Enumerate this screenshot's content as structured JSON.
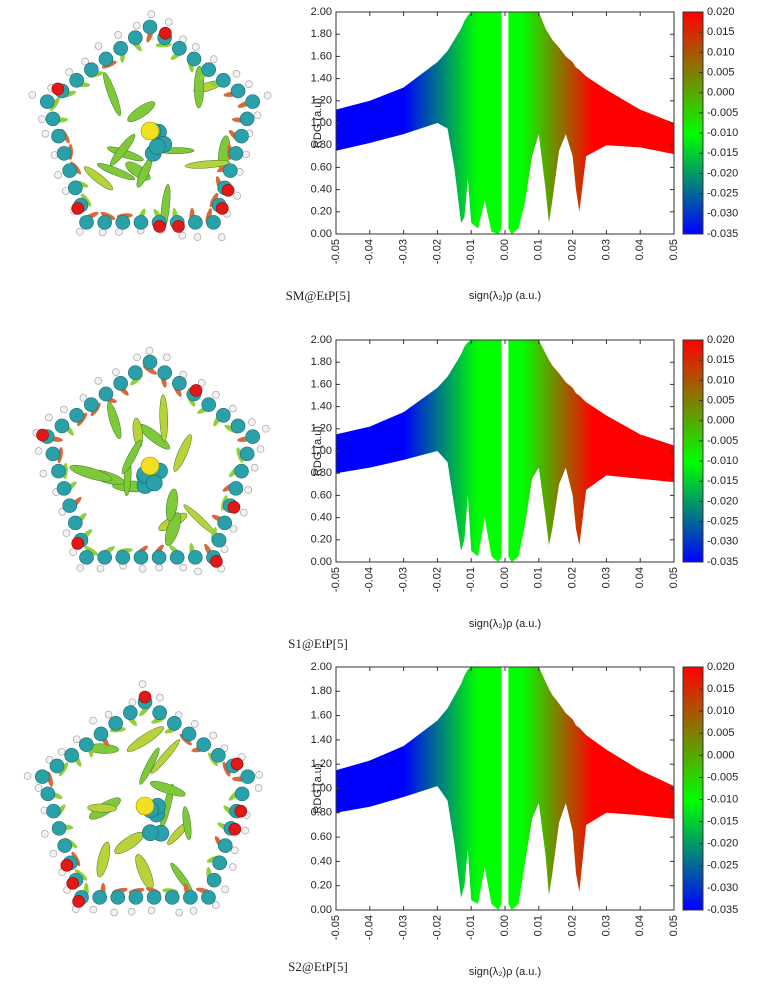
{
  "chart_data": [
    {
      "type": "area",
      "caption": "SM@EtP[5]",
      "x_label": "sign(λ₂)ρ (a.u.)",
      "y_label": "RDG (a.u)",
      "xlim": [
        -0.05,
        0.05
      ],
      "ylim": [
        0,
        2
      ],
      "xticks": [
        -0.05,
        -0.04,
        -0.03,
        -0.02,
        -0.01,
        {
          "value": 0,
          "label": "0.00"
        },
        0.01,
        0.02,
        0.03,
        0.04,
        0.05
      ],
      "yticks": [
        {
          "value": 0,
          "label": "0.00"
        },
        {
          "value": 0.2,
          "label": "0.20"
        },
        {
          "value": 0.4,
          "label": "0.40"
        },
        {
          "value": 0.6,
          "label": "0.60"
        },
        {
          "value": 0.8,
          "label": "0.80"
        },
        {
          "value": 1,
          "label": "1.00"
        },
        {
          "value": 1.2,
          "label": "1.20"
        },
        {
          "value": 1.4,
          "label": "1.40"
        },
        {
          "value": 1.6,
          "label": "1.60"
        },
        {
          "value": 1.8,
          "label": "1.80"
        },
        {
          "value": 2,
          "label": "2.00"
        }
      ],
      "x": [
        -0.05,
        -0.04,
        -0.03,
        -0.02,
        -0.017,
        -0.015,
        -0.013,
        -0.012,
        -0.011,
        -0.01,
        -0.008,
        -0.006,
        -0.004,
        -0.002,
        -0.001,
        0,
        0.001,
        0.002,
        0.004,
        0.006,
        0.008,
        0.01,
        0.012,
        0.013,
        0.014,
        0.016,
        0.018,
        0.02,
        0.021,
        0.022,
        0.024,
        0.03,
        0.04,
        0.05
      ],
      "values": [
        1.12,
        1.2,
        1.32,
        1.55,
        1.65,
        1.75,
        1.85,
        1.92,
        1.97,
        2,
        2,
        2,
        2,
        2,
        2,
        null,
        2,
        2,
        2,
        2,
        2,
        2,
        1.85,
        1.8,
        1.75,
        1.68,
        1.6,
        1.55,
        1.5,
        1.48,
        1.42,
        1.3,
        1.12,
        1.0
      ],
      "lower_values": [
        0.75,
        0.82,
        0.9,
        1.0,
        0.95,
        0.6,
        0.1,
        0.15,
        0.5,
        0.1,
        0.05,
        0.3,
        0.02,
        0,
        0.05,
        null,
        0.05,
        0,
        0.05,
        0.3,
        0.7,
        0.9,
        0.4,
        0.1,
        0.3,
        0.75,
        0.9,
        0.7,
        0.4,
        0.2,
        0.7,
        0.8,
        0.78,
        0.72
      ],
      "colorbar": {
        "ylim": [
          -0.035,
          0.02
        ],
        "colors": [
          "#0000ff",
          "#00ff00",
          "#ff0000"
        ],
        "yticks": [
          {
            "value": 0.02,
            "label": "0.020"
          },
          {
            "value": 0.015,
            "label": "0.015"
          },
          {
            "value": 0.01,
            "label": "0.010"
          },
          {
            "value": 0.005,
            "label": "0.005"
          },
          {
            "value": 0,
            "label": "0.000"
          },
          {
            "value": -0.005,
            "label": "-0.005"
          },
          {
            "value": -0.01,
            "label": "-0.010"
          },
          {
            "value": -0.015,
            "label": "-0.015"
          },
          {
            "value": -0.02,
            "label": "-0.020"
          },
          {
            "value": -0.025,
            "label": "-0.025"
          },
          {
            "value": -0.03,
            "label": "-0.030"
          },
          {
            "value": -0.035,
            "label": "-0.035"
          }
        ]
      }
    },
    {
      "type": "area",
      "caption": "S1@EtP[5]",
      "x_label": "sign(λ₂)ρ (a.u.)",
      "y_label": "RDG (a.u)",
      "xlim": [
        -0.05,
        0.05
      ],
      "ylim": [
        0,
        2
      ],
      "xticks": [
        -0.05,
        -0.04,
        -0.03,
        -0.02,
        -0.01,
        {
          "value": 0,
          "label": "0.00"
        },
        0.01,
        0.02,
        0.03,
        0.04,
        0.05
      ],
      "yticks": [
        {
          "value": 0,
          "label": "0.00"
        },
        {
          "value": 0.2,
          "label": "0.20"
        },
        {
          "value": 0.4,
          "label": "0.40"
        },
        {
          "value": 0.6,
          "label": "0.60"
        },
        {
          "value": 0.8,
          "label": "0.80"
        },
        {
          "value": 1,
          "label": "1.00"
        },
        {
          "value": 1.2,
          "label": "1.20"
        },
        {
          "value": 1.4,
          "label": "1.40"
        },
        {
          "value": 1.6,
          "label": "1.60"
        },
        {
          "value": 1.8,
          "label": "1.80"
        },
        {
          "value": 2,
          "label": "2.00"
        }
      ],
      "x": [
        -0.05,
        -0.04,
        -0.03,
        -0.02,
        -0.017,
        -0.015,
        -0.013,
        -0.012,
        -0.011,
        -0.01,
        -0.008,
        -0.006,
        -0.004,
        -0.002,
        -0.001,
        0,
        0.001,
        0.002,
        0.004,
        0.006,
        0.008,
        0.01,
        0.012,
        0.013,
        0.014,
        0.016,
        0.018,
        0.02,
        0.021,
        0.022,
        0.024,
        0.03,
        0.04,
        0.05
      ],
      "values": [
        1.15,
        1.22,
        1.35,
        1.57,
        1.67,
        1.77,
        1.87,
        1.94,
        1.98,
        2,
        2,
        2,
        2,
        2,
        2,
        null,
        2,
        2,
        2,
        2,
        2,
        2,
        1.88,
        1.82,
        1.77,
        1.7,
        1.62,
        1.57,
        1.52,
        1.5,
        1.44,
        1.32,
        1.15,
        1.05
      ],
      "lower_values": [
        0.8,
        0.85,
        0.92,
        1.0,
        0.9,
        0.5,
        0.1,
        0.2,
        0.6,
        0.1,
        0.05,
        0.4,
        0.05,
        0,
        0.05,
        null,
        0.05,
        0,
        0.05,
        0.35,
        0.75,
        0.85,
        0.4,
        0.15,
        0.3,
        0.7,
        0.85,
        0.6,
        0.3,
        0.15,
        0.65,
        0.78,
        0.75,
        0.72
      ],
      "colorbar": {
        "ylim": [
          -0.035,
          0.02
        ],
        "colors": [
          "#0000ff",
          "#00ff00",
          "#ff0000"
        ],
        "yticks": [
          {
            "value": 0.02,
            "label": "0.020"
          },
          {
            "value": 0.015,
            "label": "0.015"
          },
          {
            "value": 0.01,
            "label": "0.010"
          },
          {
            "value": 0.005,
            "label": "0.005"
          },
          {
            "value": 0,
            "label": "0.000"
          },
          {
            "value": -0.005,
            "label": "-0.005"
          },
          {
            "value": -0.01,
            "label": "-0.010"
          },
          {
            "value": -0.015,
            "label": "-0.015"
          },
          {
            "value": -0.02,
            "label": "-0.020"
          },
          {
            "value": -0.025,
            "label": "-0.025"
          },
          {
            "value": -0.03,
            "label": "-0.030"
          },
          {
            "value": -0.035,
            "label": "-0.035"
          }
        ]
      }
    },
    {
      "type": "area",
      "caption": "S2@EtP[5]",
      "x_label": "sign(λ₂)ρ (a.u.)",
      "y_label": "RDG (a.u)",
      "xlim": [
        -0.05,
        0.05
      ],
      "ylim": [
        0,
        2
      ],
      "xticks": [
        -0.05,
        -0.04,
        -0.03,
        -0.02,
        -0.01,
        {
          "value": 0,
          "label": "0.00"
        },
        0.01,
        0.02,
        0.03,
        0.04,
        0.05
      ],
      "yticks": [
        {
          "value": 0,
          "label": "0.00"
        },
        {
          "value": 0.2,
          "label": "0.20"
        },
        {
          "value": 0.4,
          "label": "0.40"
        },
        {
          "value": 0.6,
          "label": "0.60"
        },
        {
          "value": 0.8,
          "label": "0.80"
        },
        {
          "value": 1,
          "label": "1.00"
        },
        {
          "value": 1.2,
          "label": "1.20"
        },
        {
          "value": 1.4,
          "label": "1.40"
        },
        {
          "value": 1.6,
          "label": "1.60"
        },
        {
          "value": 1.8,
          "label": "1.80"
        },
        {
          "value": 2,
          "label": "2.00"
        }
      ],
      "x": [
        -0.05,
        -0.04,
        -0.03,
        -0.02,
        -0.017,
        -0.015,
        -0.013,
        -0.012,
        -0.011,
        -0.01,
        -0.008,
        -0.006,
        -0.004,
        -0.002,
        -0.001,
        0,
        0.001,
        0.002,
        0.004,
        0.006,
        0.008,
        0.01,
        0.012,
        0.013,
        0.014,
        0.016,
        0.018,
        0.02,
        0.021,
        0.022,
        0.024,
        0.03,
        0.04,
        0.05
      ],
      "values": [
        1.15,
        1.23,
        1.35,
        1.56,
        1.66,
        1.76,
        1.86,
        1.93,
        1.98,
        2,
        2,
        2,
        2,
        2,
        2,
        null,
        2,
        2,
        2,
        2,
        2,
        2,
        1.88,
        1.82,
        1.77,
        1.7,
        1.62,
        1.57,
        1.52,
        1.5,
        1.44,
        1.32,
        1.15,
        1.02
      ],
      "lower_values": [
        0.8,
        0.85,
        0.93,
        1.02,
        0.9,
        0.55,
        0.1,
        0.2,
        0.5,
        0.08,
        0.05,
        0.35,
        0.05,
        0,
        0.05,
        null,
        0.05,
        0,
        0.05,
        0.4,
        0.75,
        0.88,
        0.45,
        0.12,
        0.3,
        0.72,
        0.88,
        0.65,
        0.3,
        0.15,
        0.7,
        0.8,
        0.78,
        0.75
      ],
      "colorbar": {
        "ylim": [
          -0.035,
          0.02
        ],
        "colors": [
          "#0000ff",
          "#00ff00",
          "#ff0000"
        ],
        "yticks": [
          {
            "value": 0.02,
            "label": "0.020"
          },
          {
            "value": 0.015,
            "label": "0.015"
          },
          {
            "value": 0.01,
            "label": "0.010"
          },
          {
            "value": 0.005,
            "label": "0.005"
          },
          {
            "value": 0,
            "label": "0.000"
          },
          {
            "value": -0.005,
            "label": "-0.005"
          },
          {
            "value": -0.01,
            "label": "-0.010"
          },
          {
            "value": -0.015,
            "label": "-0.015"
          },
          {
            "value": -0.02,
            "label": "-0.020"
          },
          {
            "value": -0.025,
            "label": "-0.025"
          },
          {
            "value": -0.03,
            "label": "-0.030"
          },
          {
            "value": -0.035,
            "label": "-0.035"
          }
        ]
      }
    }
  ]
}
